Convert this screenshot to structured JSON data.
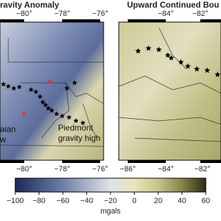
{
  "left_map": {
    "title": "ravity Anomaly",
    "top_ticks": [
      "−80°",
      "−78°",
      "−76°"
    ],
    "bottom_ticks": [
      "−80°",
      "−78°",
      "−76°"
    ],
    "annotations": [
      "aian",
      "w",
      "Piedmont",
      "gravity high"
    ]
  },
  "right_map": {
    "title": "Upward Continued Bou",
    "top_ticks": [
      "−84°",
      "−82°"
    ],
    "bottom_ticks": [
      "−86°",
      "−84°",
      "−82°"
    ]
  },
  "colorbar": {
    "lim": [
      -100,
      60
    ],
    "ticks": [
      {
        "value": -100,
        "label": "−100"
      },
      {
        "value": -80,
        "label": "−80"
      },
      {
        "value": -60,
        "label": "−60"
      },
      {
        "value": -40,
        "label": "−40"
      },
      {
        "value": -20,
        "label": "−20"
      },
      0,
      20,
      40,
      60
    ],
    "label": "mgals"
  }
}
